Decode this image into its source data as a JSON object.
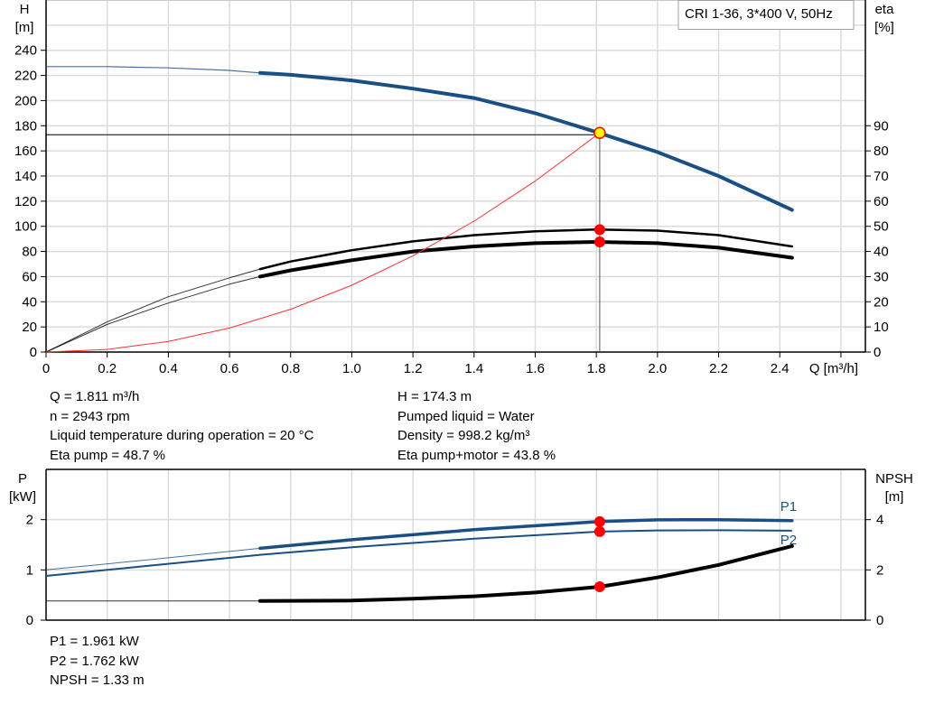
{
  "chart_data": [
    {
      "type": "line",
      "title": "CRI 1-36, 3*400 V, 50Hz",
      "xlabel": "Q [m³/h]",
      "ylabel_left": [
        "H",
        "[m]"
      ],
      "ylabel_right": [
        "eta",
        "[%]"
      ],
      "xlim": [
        0,
        2.68
      ],
      "ylim_left": [
        0,
        280
      ],
      "ylim_right": [
        0,
        140
      ],
      "xticks": [
        "0",
        "0.2",
        "0.4",
        "0.6",
        "0.8",
        "1.0",
        "1.2",
        "1.4",
        "1.6",
        "1.8",
        "2.0",
        "2.2",
        "2.4"
      ],
      "yticks_left": [
        "0",
        "20",
        "40",
        "60",
        "80",
        "100",
        "120",
        "140",
        "160",
        "180",
        "200",
        "220",
        "240"
      ],
      "yticks_right": [
        "0",
        "10",
        "20",
        "30",
        "40",
        "50",
        "60",
        "70",
        "80",
        "90"
      ],
      "grid": true,
      "series": [
        {
          "id": "H",
          "axis": "left",
          "color": "#1a4f86",
          "x": [
            0,
            0.2,
            0.4,
            0.6,
            0.7,
            0.8,
            1.0,
            1.2,
            1.4,
            1.6,
            1.8,
            2.0,
            2.2,
            2.44
          ],
          "y": [
            227,
            227,
            226,
            224,
            222,
            220.5,
            216,
            209.5,
            202,
            190,
            175,
            159,
            140,
            113
          ],
          "thick_from": 0.7
        },
        {
          "id": "eta_pump",
          "axis": "right",
          "color": "#000000",
          "x": [
            0,
            0.2,
            0.4,
            0.6,
            0.7,
            0.8,
            1.0,
            1.2,
            1.4,
            1.6,
            1.8,
            2.0,
            2.2,
            2.44
          ],
          "y": [
            0,
            12,
            22,
            29.5,
            33,
            36,
            40.5,
            44,
            46.5,
            48,
            48.7,
            48.3,
            46.5,
            42
          ],
          "thick_from": 0.7
        },
        {
          "id": "eta_pump_motor",
          "axis": "right",
          "color": "#000000",
          "x": [
            0,
            0.2,
            0.4,
            0.6,
            0.7,
            0.8,
            1.0,
            1.2,
            1.4,
            1.6,
            1.8,
            2.0,
            2.2,
            2.44
          ],
          "y": [
            0,
            11,
            19.5,
            27,
            30,
            32.5,
            36.5,
            40,
            42,
            43.3,
            43.8,
            43.3,
            41.5,
            37.5
          ],
          "thick_from": 0.7
        },
        {
          "id": "system_curve",
          "axis": "left",
          "color": "#ff3030",
          "x": [
            0,
            0.2,
            0.4,
            0.6,
            0.8,
            1.0,
            1.2,
            1.4,
            1.6,
            1.811
          ],
          "y": [
            0,
            2.1,
            8.5,
            19.1,
            34,
            53.1,
            76.5,
            104.1,
            136,
            174.3
          ]
        }
      ],
      "duty_point": {
        "Q": 1.811,
        "H": 174.3,
        "eta_pump": 48.7,
        "eta_pump_motor": 43.8
      }
    },
    {
      "type": "line",
      "ylabel_left": [
        "P",
        "[kW]"
      ],
      "ylabel_right": [
        "NPSH",
        "[m]"
      ],
      "xlim": [
        0,
        2.68
      ],
      "ylim_left": [
        0,
        3
      ],
      "ylim_right": [
        0,
        6
      ],
      "yticks_left": [
        "0",
        "1",
        "2"
      ],
      "yticks_right": [
        "0",
        "2",
        "4"
      ],
      "grid": true,
      "series": [
        {
          "id": "P1",
          "name": "P1",
          "axis": "left",
          "color": "#1a4f86",
          "x": [
            0,
            0.35,
            0.7,
            1.0,
            1.4,
            1.811,
            2.0,
            2.2,
            2.44
          ],
          "y": [
            1.0,
            1.21,
            1.43,
            1.6,
            1.8,
            1.961,
            1.995,
            2.0,
            1.98
          ],
          "thick_from": 0.7
        },
        {
          "id": "P2",
          "name": "P2",
          "axis": "left",
          "color": "#1a4f86",
          "x": [
            0,
            0.35,
            0.7,
            1.0,
            1.4,
            1.811,
            2.0,
            2.2,
            2.44
          ],
          "y": [
            0.88,
            1.09,
            1.3,
            1.45,
            1.62,
            1.762,
            1.785,
            1.79,
            1.78
          ]
        },
        {
          "id": "NPSH",
          "axis": "right",
          "color": "#000000",
          "x": [
            0,
            0.7,
            1.0,
            1.2,
            1.4,
            1.6,
            1.811,
            2.0,
            2.2,
            2.44
          ],
          "y": [
            0.76,
            0.76,
            0.78,
            0.85,
            0.95,
            1.1,
            1.33,
            1.7,
            2.2,
            2.95
          ],
          "thick_from": 0.7
        }
      ],
      "duty_point": {
        "Q": 1.811,
        "P1": 1.961,
        "P2": 1.762,
        "NPSH": 1.33
      }
    }
  ],
  "info_top_left": [
    "Q = 1.811 m³/h",
    "n = 2943 rpm",
    "Liquid temperature during operation = 20 °C",
    "Eta pump = 48.7 %"
  ],
  "info_top_right": [
    "H = 174.3 m",
    "Pumped liquid = Water",
    "Density = 998.2 kg/m³",
    "Eta pump+motor = 43.8 %"
  ],
  "info_bottom": [
    "P1 = 1.961 kW",
    "P2 = 1.762 kW",
    "NPSH = 1.33 m"
  ]
}
